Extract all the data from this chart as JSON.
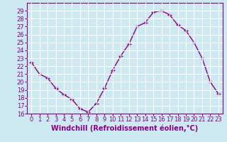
{
  "x": [
    0,
    1,
    2,
    3,
    4,
    5,
    6,
    7,
    8,
    9,
    10,
    11,
    12,
    13,
    14,
    15,
    16,
    17,
    18,
    19,
    20,
    21,
    22,
    23
  ],
  "y": [
    22.5,
    21.0,
    20.5,
    19.2,
    18.4,
    17.8,
    16.6,
    16.2,
    17.3,
    19.2,
    21.5,
    23.3,
    24.8,
    27.0,
    27.5,
    28.8,
    29.0,
    28.5,
    27.2,
    26.5,
    25.0,
    23.0,
    20.0,
    18.5
  ],
  "line_color": "#880088",
  "marker": "+",
  "marker_color": "#880088",
  "marker_size": 4,
  "line_width": 1.0,
  "xlabel": "Windchill (Refroidissement éolien,°C)",
  "ylim": [
    16,
    30
  ],
  "xlim": [
    -0.5,
    23.5
  ],
  "yticks": [
    16,
    17,
    18,
    19,
    20,
    21,
    22,
    23,
    24,
    25,
    26,
    27,
    28,
    29
  ],
  "xticks": [
    0,
    1,
    2,
    3,
    4,
    5,
    6,
    7,
    8,
    9,
    10,
    11,
    12,
    13,
    14,
    15,
    16,
    17,
    18,
    19,
    20,
    21,
    22,
    23
  ],
  "bg_color": "#cce8f0",
  "grid_color": "#ffffff",
  "tick_color": "#880088",
  "label_color": "#880088",
  "xlabel_fontsize": 7.0,
  "tick_fontsize": 6.0
}
